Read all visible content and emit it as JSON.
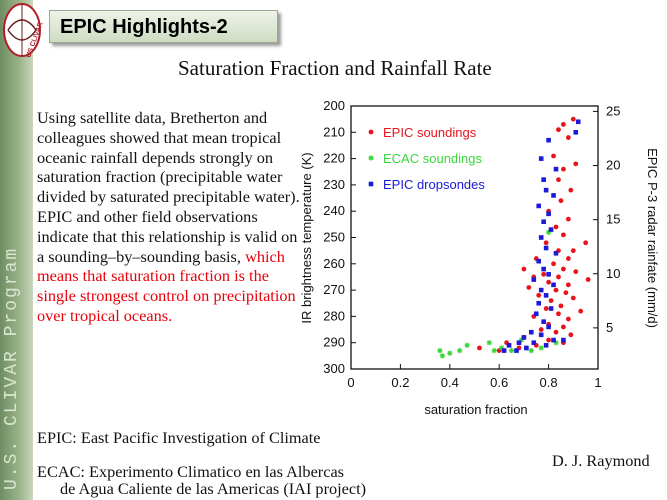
{
  "sidebar": {
    "program_label": "U.S. CLIVAR Program",
    "logo_text": "US CLIVAR"
  },
  "header": {
    "title": "EPIC Highlights-2"
  },
  "slide": {
    "heading": "Saturation Fraction and Rainfall Rate",
    "paragraph_black": "Using satellite data, Bretherton and colleagues showed that mean tropical oceanic rainfall depends strongly on saturation fraction (precipitable water divided by saturated precipitable water). EPIC and other field observations indicate that this relationship is valid on a sounding–by–sounding basis,",
    "paragraph_red": "which means that saturation fraction is the single strongest control on precipitation over tropical oceans.",
    "epic_definition": "EPIC: East Pacific Investigation of Climate",
    "ecac_definition_line1": "ECAC: Experimento Climatico en las Albercas",
    "ecac_definition_line2": "de Agua Caliente de las Americas (IAI project)",
    "author": "D. J. Raymond"
  },
  "colors": {
    "epic_soundings": "#e8141c",
    "ecac_soundings": "#3cd63c",
    "epic_dropsondes": "#1a1ad8",
    "highlight_text": "#e8000b"
  },
  "chart_data": {
    "type": "scatter",
    "xlabel": "saturation fraction",
    "ylabel_left": "IR brightness temperature (K)",
    "ylabel_right": "EPIC P-3 radar rainfate (mm/d)",
    "xlim": [
      0,
      1
    ],
    "ylim_left": [
      200,
      300
    ],
    "ylim_right": [
      1.2,
      25.5
    ],
    "x_ticks": [
      "0",
      "0.2",
      "0.4",
      "0.6",
      "0.8",
      "1"
    ],
    "y_left_ticks": [
      "200",
      "210",
      "220",
      "230",
      "240",
      "250",
      "260",
      "270",
      "280",
      "290",
      "300"
    ],
    "y_right_ticks": [
      "5",
      "10",
      "15",
      "20",
      "25"
    ],
    "legend": [
      "EPIC soundings",
      "ECAC soundings",
      "EPIC dropsondes"
    ],
    "series": [
      {
        "name": "EPIC soundings",
        "marker": "circle",
        "points": [
          [
            0.9,
            205
          ],
          [
            0.86,
            207
          ],
          [
            0.84,
            209
          ],
          [
            0.88,
            212
          ],
          [
            0.82,
            219
          ],
          [
            0.91,
            222
          ],
          [
            0.86,
            224
          ],
          [
            0.84,
            228
          ],
          [
            0.89,
            232
          ],
          [
            0.85,
            236
          ],
          [
            0.8,
            240
          ],
          [
            0.88,
            243
          ],
          [
            0.83,
            246
          ],
          [
            0.86,
            249
          ],
          [
            0.79,
            252
          ],
          [
            0.95,
            252
          ],
          [
            0.9,
            255
          ],
          [
            0.84,
            255
          ],
          [
            0.88,
            258
          ],
          [
            0.75,
            258
          ],
          [
            0.82,
            260
          ],
          [
            0.7,
            262
          ],
          [
            0.86,
            262
          ],
          [
            0.91,
            263
          ],
          [
            0.78,
            264
          ],
          [
            0.74,
            265
          ],
          [
            0.84,
            265
          ],
          [
            0.96,
            266
          ],
          [
            0.8,
            267
          ],
          [
            0.88,
            268
          ],
          [
            0.72,
            269
          ],
          [
            0.83,
            270
          ],
          [
            0.87,
            271
          ],
          [
            0.76,
            272
          ],
          [
            0.9,
            273
          ],
          [
            0.81,
            274
          ],
          [
            0.85,
            276
          ],
          [
            0.79,
            277
          ],
          [
            0.93,
            278
          ],
          [
            0.84,
            279
          ],
          [
            0.74,
            280
          ],
          [
            0.88,
            281
          ],
          [
            0.8,
            283
          ],
          [
            0.86,
            284
          ],
          [
            0.77,
            285
          ],
          [
            0.83,
            286
          ],
          [
            0.89,
            287
          ],
          [
            0.7,
            288
          ],
          [
            0.8,
            289
          ],
          [
            0.86,
            290
          ],
          [
            0.63,
            290
          ],
          [
            0.75,
            291
          ],
          [
            0.52,
            292
          ],
          [
            0.68,
            292
          ],
          [
            0.6,
            293
          ]
        ]
      },
      {
        "name": "ECAC soundings",
        "marker": "star",
        "points": [
          [
            0.8,
            248
          ],
          [
            0.36,
            293
          ],
          [
            0.4,
            294
          ],
          [
            0.37,
            295
          ],
          [
            0.44,
            293
          ],
          [
            0.47,
            291
          ],
          [
            0.56,
            290
          ],
          [
            0.61,
            292
          ],
          [
            0.65,
            293
          ],
          [
            0.71,
            292
          ],
          [
            0.73,
            293
          ],
          [
            0.77,
            292
          ],
          [
            0.83,
            290
          ],
          [
            0.58,
            293
          ],
          [
            0.69,
            289
          ]
        ]
      },
      {
        "name": "EPIC dropsondes",
        "marker": "square",
        "points": [
          [
            0.92,
            206
          ],
          [
            0.91,
            210
          ],
          [
            0.8,
            213
          ],
          [
            0.77,
            220
          ],
          [
            0.83,
            224
          ],
          [
            0.78,
            228
          ],
          [
            0.79,
            232
          ],
          [
            0.82,
            234
          ],
          [
            0.76,
            238
          ],
          [
            0.8,
            241
          ],
          [
            0.78,
            244
          ],
          [
            0.81,
            247
          ],
          [
            0.77,
            250
          ],
          [
            0.79,
            254
          ],
          [
            0.83,
            256
          ],
          [
            0.76,
            259
          ],
          [
            0.78,
            262
          ],
          [
            0.8,
            264
          ],
          [
            0.74,
            266
          ],
          [
            0.82,
            268
          ],
          [
            0.77,
            270
          ],
          [
            0.79,
            272
          ],
          [
            0.76,
            275
          ],
          [
            0.81,
            277
          ],
          [
            0.75,
            279
          ],
          [
            0.78,
            282
          ],
          [
            0.8,
            284
          ],
          [
            0.73,
            286
          ],
          [
            0.77,
            287
          ],
          [
            0.7,
            288
          ],
          [
            0.82,
            289
          ],
          [
            0.68,
            290
          ],
          [
            0.74,
            290
          ],
          [
            0.64,
            291
          ],
          [
            0.79,
            291
          ],
          [
            0.86,
            289
          ],
          [
            0.62,
            293
          ],
          [
            0.67,
            293
          ],
          [
            0.71,
            292
          ]
        ]
      }
    ]
  }
}
